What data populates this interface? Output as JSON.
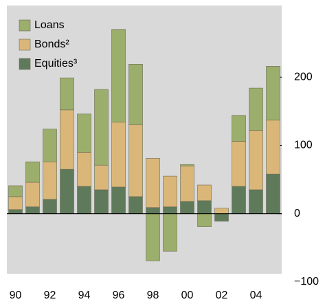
{
  "chart_data": {
    "type": "bar",
    "stacked": true,
    "categories": [
      "90",
      null,
      "92",
      null,
      "94",
      null,
      "96",
      null,
      "98",
      null,
      "00",
      null,
      "02",
      null,
      "04",
      null
    ],
    "series": [
      {
        "name": "Equities³",
        "color": "#5e7a5b",
        "values": [
          6,
          10,
          21,
          65,
          40,
          35,
          39,
          25,
          9,
          10,
          18,
          19,
          -11,
          40,
          35,
          58
        ]
      },
      {
        "name": "Bonds²",
        "color": "#dab679",
        "values": [
          19,
          36,
          55,
          87,
          50,
          36,
          95,
          105,
          72,
          45,
          52,
          23,
          8,
          66,
          87,
          79
        ]
      },
      {
        "name": "Loans",
        "color": "#9bae6b",
        "values": [
          16,
          30,
          48,
          47,
          56,
          111,
          136,
          89,
          -69,
          -55,
          2,
          -19,
          0,
          38,
          62,
          79
        ]
      }
    ],
    "ylim": [
      -88,
      305
    ],
    "yticks": [
      {
        "value": -100,
        "label": "−100"
      },
      0,
      100,
      200
    ],
    "grid": false
  }
}
